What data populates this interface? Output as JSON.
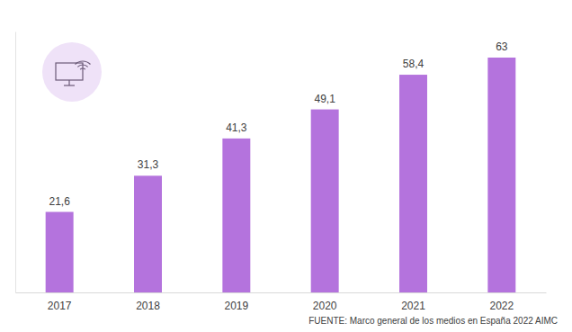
{
  "chart_data": {
    "type": "bar",
    "categories": [
      "2017",
      "2018",
      "2019",
      "2020",
      "2021",
      "2022"
    ],
    "values": [
      21.6,
      31.3,
      41.3,
      49.1,
      58.4,
      63
    ],
    "value_labels": [
      "21,6",
      "31,3",
      "41,3",
      "49,1",
      "58,4",
      "63"
    ],
    "color": "#b473dd",
    "ylim": [
      0,
      70
    ],
    "yticks": [],
    "grid": false,
    "data_labels": true,
    "tick_labels": "x",
    "source": "FUENTE: Marco general de los medios en España 2022 AIMC"
  }
}
